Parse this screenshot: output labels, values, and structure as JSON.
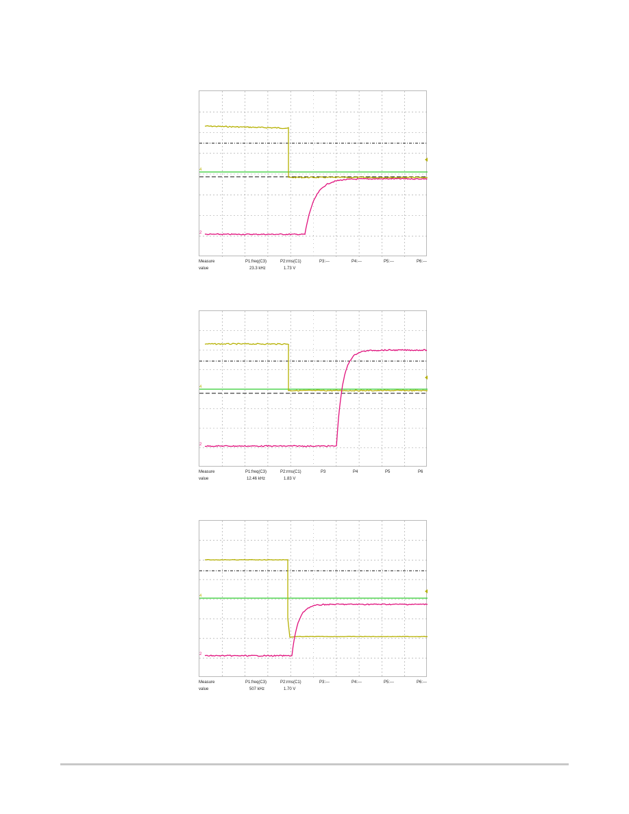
{
  "chart_data": [
    {
      "type": "line",
      "title": "",
      "series": [
        {
          "color": "#b5b000",
          "trace": "ch4-yellow"
        },
        {
          "color": "#e0107c",
          "trace": "ch2-magenta"
        },
        {
          "color": "#2ecc2e",
          "trace": "reference-green"
        }
      ],
      "grid": true,
      "readout": {
        "headers": [
          "Measure",
          "P1:freq(C3)",
          "P2:rms(C1)",
          "P3:---",
          "P4:---",
          "P5:---",
          "P6:---"
        ],
        "values": [
          "value",
          "23.3 kHz",
          "1.73 V"
        ]
      }
    },
    {
      "type": "line",
      "title": "",
      "series": [
        {
          "color": "#b5b000",
          "trace": "ch4-yellow"
        },
        {
          "color": "#e0107c",
          "trace": "ch2-magenta"
        },
        {
          "color": "#2ecc2e",
          "trace": "reference-green"
        }
      ],
      "grid": true,
      "readout": {
        "headers": [
          "Measure",
          "P1:freq(C3)",
          "P2:rms(C1)",
          "P3",
          "P4",
          "P5",
          "P6"
        ],
        "values": [
          "value",
          "12.46 kHz",
          "1.83 V"
        ]
      }
    },
    {
      "type": "line",
      "title": "",
      "series": [
        {
          "color": "#b5b000",
          "trace": "ch4-yellow"
        },
        {
          "color": "#e0107c",
          "trace": "ch2-magenta"
        },
        {
          "color": "#2ecc2e",
          "trace": "reference-green"
        }
      ],
      "grid": true,
      "readout": {
        "headers": [
          "Measure",
          "P1:freq(C3)",
          "P2:rms(C1)",
          "P3:---",
          "P4:---",
          "P5:---",
          "P6:---"
        ],
        "values": [
          "value",
          "507 kHz",
          "1.70 V"
        ]
      }
    }
  ]
}
